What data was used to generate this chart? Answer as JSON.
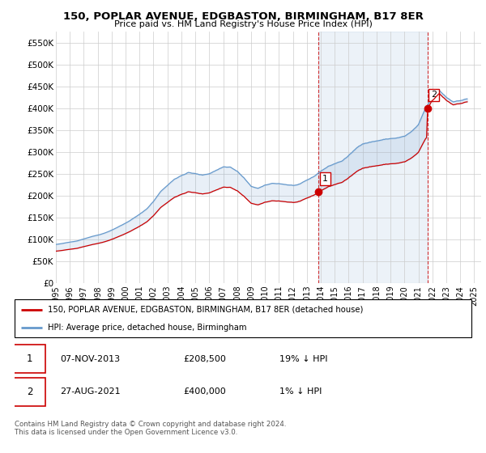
{
  "title": "150, POPLAR AVENUE, EDGBASTON, BIRMINGHAM, B17 8ER",
  "subtitle": "Price paid vs. HM Land Registry's House Price Index (HPI)",
  "xlim_start": 1995.0,
  "xlim_end": 2025.5,
  "ylim_min": 0,
  "ylim_max": 575000,
  "yticks": [
    0,
    50000,
    100000,
    150000,
    200000,
    250000,
    300000,
    350000,
    400000,
    450000,
    500000,
    550000
  ],
  "ytick_labels": [
    "£0",
    "£50K",
    "£100K",
    "£150K",
    "£200K",
    "£250K",
    "£300K",
    "£350K",
    "£400K",
    "£450K",
    "£500K",
    "£550K"
  ],
  "xticks": [
    1995,
    1996,
    1997,
    1998,
    1999,
    2000,
    2001,
    2002,
    2003,
    2004,
    2005,
    2006,
    2007,
    2008,
    2009,
    2010,
    2011,
    2012,
    2013,
    2014,
    2015,
    2016,
    2017,
    2018,
    2019,
    2020,
    2021,
    2022,
    2023,
    2024,
    2025
  ],
  "transaction1_x": 2013.85,
  "transaction1_y": 208500,
  "transaction2_x": 2021.65,
  "transaction2_y": 400000,
  "property_color": "#cc0000",
  "hpi_color": "#6699cc",
  "fill_color": "#ddeeff",
  "legend_label_property": "150, POPLAR AVENUE, EDGBASTON, BIRMINGHAM, B17 8ER (detached house)",
  "legend_label_hpi": "HPI: Average price, detached house, Birmingham",
  "table_rows": [
    {
      "num": "1",
      "date": "07-NOV-2013",
      "price": "£208,500",
      "hpi": "19% ↓ HPI"
    },
    {
      "num": "2",
      "date": "27-AUG-2021",
      "price": "£400,000",
      "hpi": "1% ↓ HPI"
    }
  ],
  "copyright_text": "Contains HM Land Registry data © Crown copyright and database right 2024.\nThis data is licensed under the Open Government Licence v3.0.",
  "background_color": "#ffffff",
  "grid_color": "#cccccc"
}
